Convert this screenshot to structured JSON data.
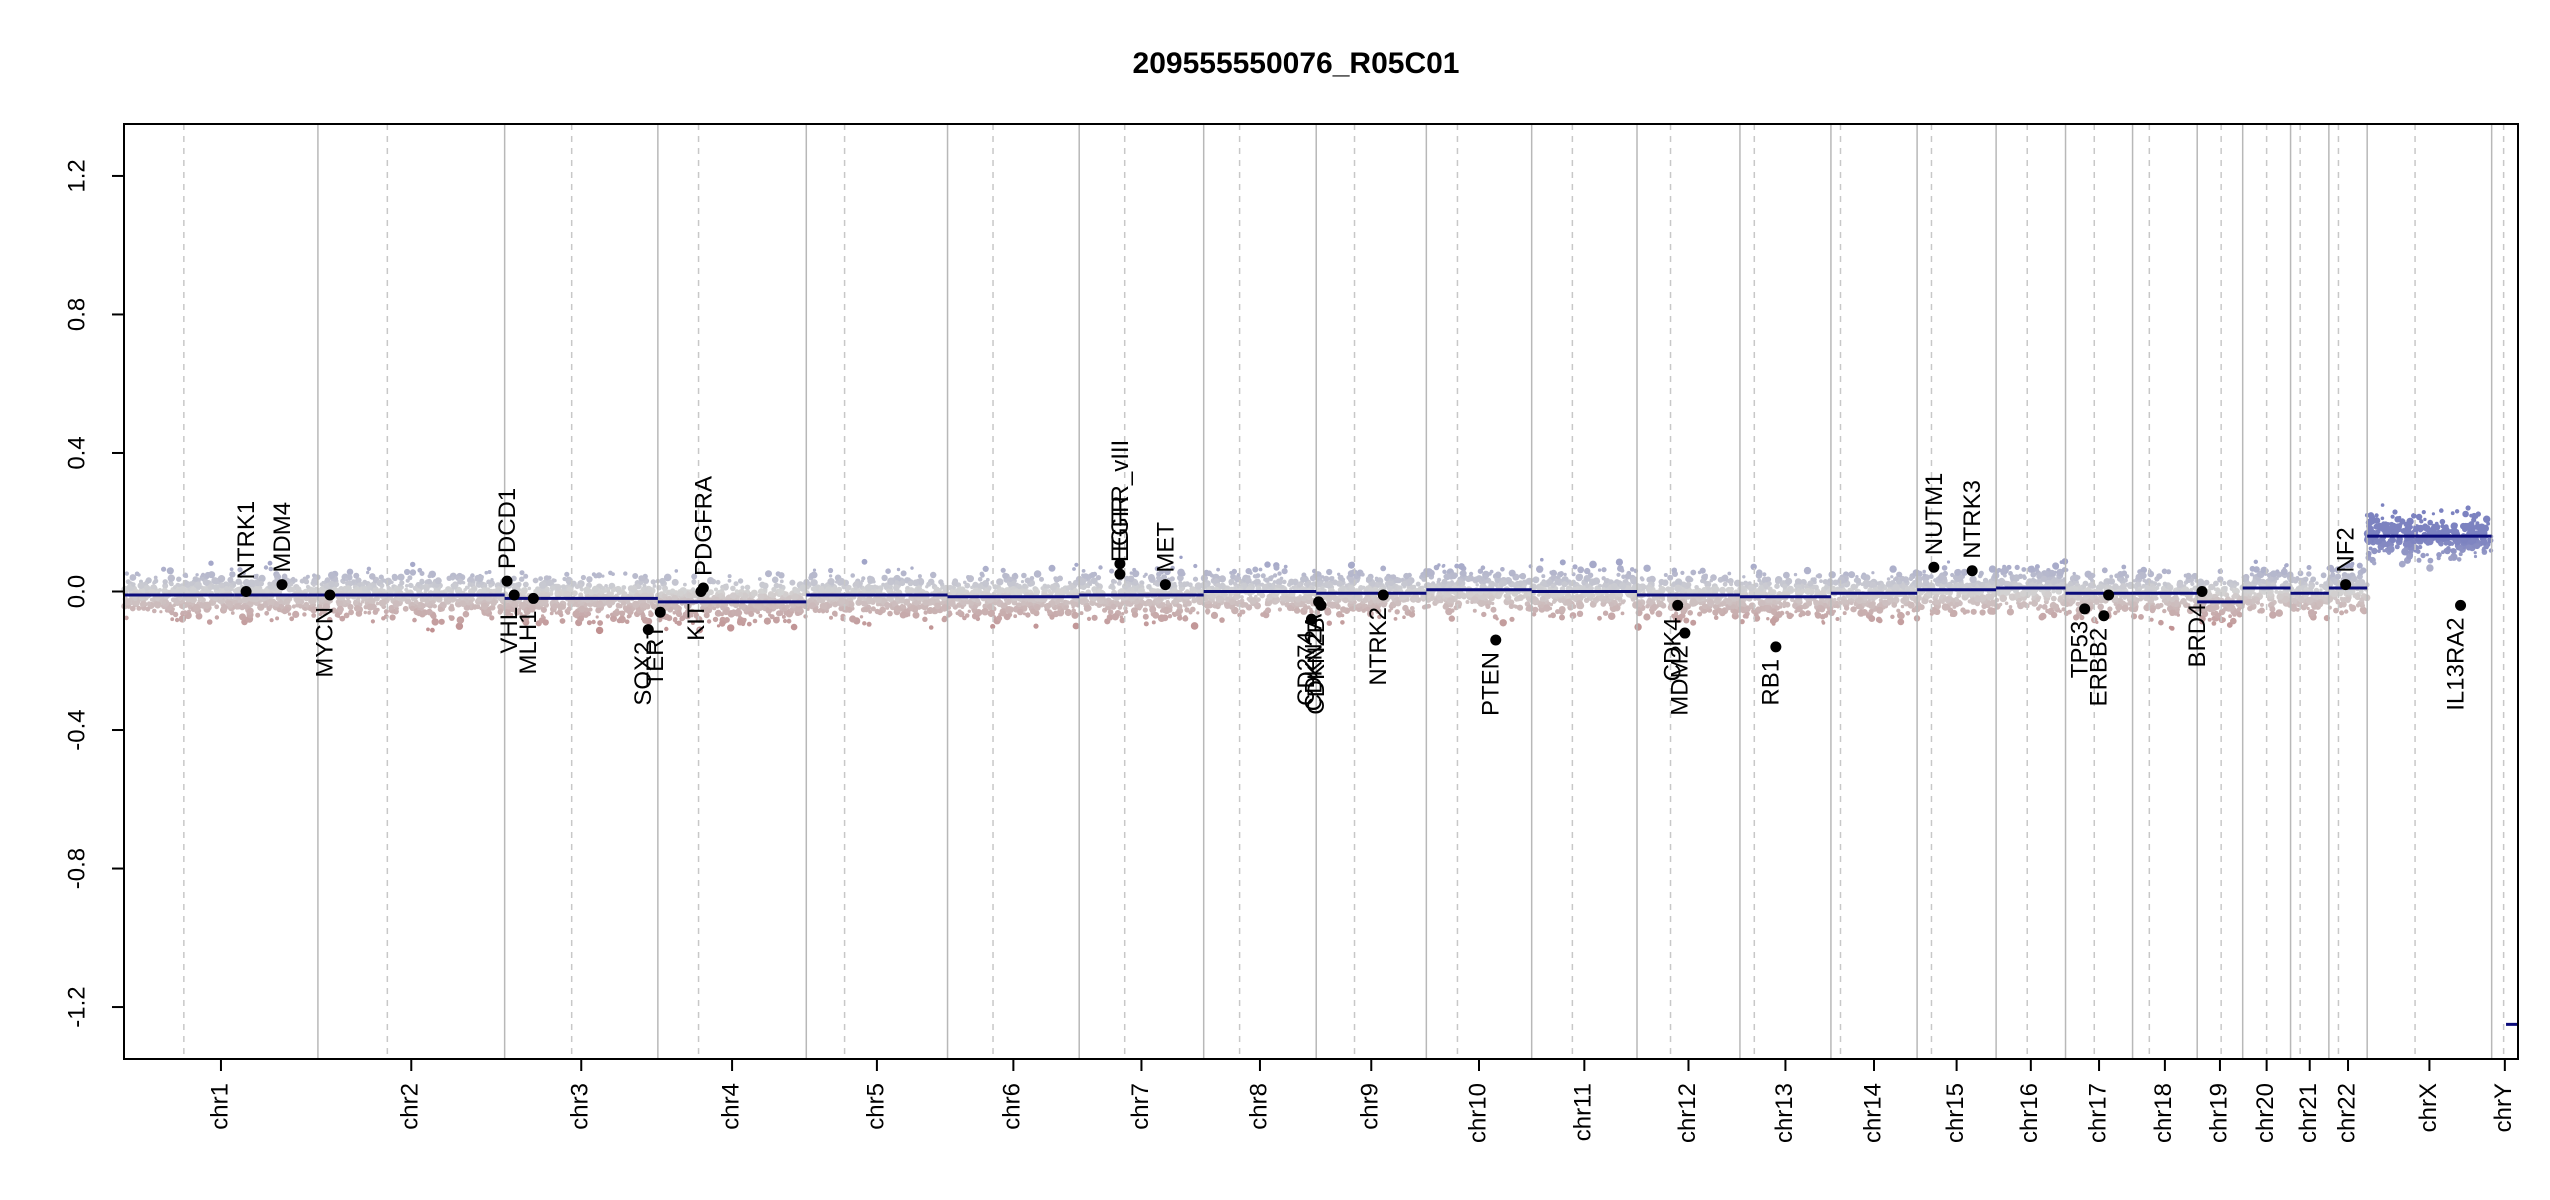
{
  "chart_data": {
    "type": "scatter",
    "title": "209555550076_R05C01",
    "xlabel": "",
    "ylabel": "",
    "ylim": [
      -1.35,
      1.35
    ],
    "y_ticks": [
      1.2,
      0.8,
      0.4,
      0.0,
      -0.4,
      -0.8,
      -1.2
    ],
    "y_tick_labels": [
      "1.2",
      "0.8",
      "0.4",
      "0.0",
      "-0.4",
      "-0.8",
      "-1.2"
    ],
    "grid": false,
    "colors": {
      "gain": "#7c82c0",
      "loss": "#b9797a",
      "neutral": "#d3d3d3",
      "segment": "#0b0b7a",
      "boundary": "#b8b8b8",
      "centromere": "#c8c8c8"
    },
    "chromosomes": [
      {
        "name": "chr1",
        "start": 0.0,
        "end": 8.1,
        "centromere": 2.5
      },
      {
        "name": "chr2",
        "start": 8.1,
        "end": 15.9,
        "centromere": 11.0
      },
      {
        "name": "chr3",
        "start": 15.9,
        "end": 22.3,
        "centromere": 18.7
      },
      {
        "name": "chr4",
        "start": 22.3,
        "end": 28.5,
        "centromere": 24.0
      },
      {
        "name": "chr5",
        "start": 28.5,
        "end": 34.4,
        "centromere": 30.1
      },
      {
        "name": "chr6",
        "start": 34.4,
        "end": 39.9,
        "centromere": 36.3
      },
      {
        "name": "chr7",
        "start": 39.9,
        "end": 45.1,
        "centromere": 41.8
      },
      {
        "name": "chr8",
        "start": 45.1,
        "end": 49.8,
        "centromere": 46.6
      },
      {
        "name": "chr9",
        "start": 49.8,
        "end": 54.4,
        "centromere": 51.4
      },
      {
        "name": "chr10",
        "start": 54.4,
        "end": 58.8,
        "centromere": 55.7
      },
      {
        "name": "chr11",
        "start": 58.8,
        "end": 63.2,
        "centromere": 60.5
      },
      {
        "name": "chr12",
        "start": 63.2,
        "end": 67.5,
        "centromere": 64.6
      },
      {
        "name": "chr13",
        "start": 67.5,
        "end": 71.3,
        "centromere": 68.1
      },
      {
        "name": "chr14",
        "start": 71.3,
        "end": 74.9,
        "centromere": 71.7
      },
      {
        "name": "chr15",
        "start": 74.9,
        "end": 78.2,
        "centromere": 75.5
      },
      {
        "name": "chr16",
        "start": 78.2,
        "end": 81.1,
        "centromere": 79.5
      },
      {
        "name": "chr17",
        "start": 81.1,
        "end": 83.9,
        "centromere": 82.3
      },
      {
        "name": "chr18",
        "start": 83.9,
        "end": 86.6,
        "centromere": 84.6
      },
      {
        "name": "chr19",
        "start": 86.6,
        "end": 88.5,
        "centromere": 87.6
      },
      {
        "name": "chr20",
        "start": 88.5,
        "end": 90.5,
        "centromere": 89.5
      },
      {
        "name": "chr21",
        "start": 90.5,
        "end": 92.1,
        "centromere": 90.9
      },
      {
        "name": "chr22",
        "start": 92.1,
        "end": 93.7,
        "centromere": 92.5
      },
      {
        "name": "chrX",
        "start": 93.7,
        "end": 98.9,
        "centromere": 95.7
      },
      {
        "name": "chrY",
        "start": 98.9,
        "end": 100.0,
        "centromere": 99.4
      }
    ],
    "segments": [
      {
        "chr": "chr1",
        "start": 0.0,
        "end": 4.6,
        "value": -0.01
      },
      {
        "chr": "chr1",
        "start": 4.6,
        "end": 8.1,
        "value": -0.01
      },
      {
        "chr": "chr2",
        "start": 8.1,
        "end": 15.9,
        "value": -0.01
      },
      {
        "chr": "chr3",
        "start": 15.9,
        "end": 17.4,
        "value": -0.02
      },
      {
        "chr": "chr3",
        "start": 17.4,
        "end": 22.3,
        "value": -0.02
      },
      {
        "chr": "chr4",
        "start": 22.3,
        "end": 28.5,
        "value": -0.03
      },
      {
        "chr": "chr5",
        "start": 28.5,
        "end": 34.4,
        "value": -0.01
      },
      {
        "chr": "chr6",
        "start": 34.4,
        "end": 39.9,
        "value": -0.015
      },
      {
        "chr": "chr7",
        "start": 39.9,
        "end": 45.1,
        "value": -0.01
      },
      {
        "chr": "chr8",
        "start": 45.1,
        "end": 49.8,
        "value": 0.0
      },
      {
        "chr": "chr9",
        "start": 49.8,
        "end": 54.4,
        "value": -0.005
      },
      {
        "chr": "chr10",
        "start": 54.4,
        "end": 58.8,
        "value": 0.005
      },
      {
        "chr": "chr11",
        "start": 58.8,
        "end": 63.2,
        "value": 0.0
      },
      {
        "chr": "chr12",
        "start": 63.2,
        "end": 67.5,
        "value": -0.01
      },
      {
        "chr": "chr13",
        "start": 67.5,
        "end": 71.3,
        "value": -0.015
      },
      {
        "chr": "chr14",
        "start": 71.3,
        "end": 74.9,
        "value": -0.005
      },
      {
        "chr": "chr15",
        "start": 74.9,
        "end": 78.2,
        "value": 0.005
      },
      {
        "chr": "chr16",
        "start": 78.2,
        "end": 81.1,
        "value": 0.01
      },
      {
        "chr": "chr17",
        "start": 81.1,
        "end": 83.9,
        "value": -0.005
      },
      {
        "chr": "chr18",
        "start": 83.9,
        "end": 86.6,
        "value": -0.005
      },
      {
        "chr": "chr19",
        "start": 86.6,
        "end": 88.5,
        "value": -0.03
      },
      {
        "chr": "chr20",
        "start": 88.5,
        "end": 90.5,
        "value": 0.01
      },
      {
        "chr": "chr21",
        "start": 90.5,
        "end": 92.1,
        "value": -0.005
      },
      {
        "chr": "chr22",
        "start": 92.1,
        "end": 93.7,
        "value": 0.01
      },
      {
        "chr": "chrX",
        "start": 93.7,
        "end": 98.9,
        "value": 0.16
      },
      {
        "chr": "chrY",
        "start": 99.5,
        "end": 100.0,
        "value": -1.25
      }
    ],
    "genes": [
      {
        "name": "NTRK1",
        "x": 5.1,
        "y": 0.0,
        "label_pos": "above"
      },
      {
        "name": "MDM4",
        "x": 6.6,
        "y": 0.02,
        "label_pos": "above"
      },
      {
        "name": "MYCN",
        "x": 8.6,
        "y": -0.01,
        "label_pos": "below"
      },
      {
        "name": "PDCD1",
        "x": 16.0,
        "y": 0.03,
        "label_pos": "above"
      },
      {
        "name": "VHL",
        "x": 16.3,
        "y": -0.01,
        "label_pos": "below"
      },
      {
        "name": "MLH1",
        "x": 17.1,
        "y": -0.02,
        "label_pos": "below"
      },
      {
        "name": "SOX2",
        "x": 21.9,
        "y": -0.11,
        "label_pos": "below"
      },
      {
        "name": "TERT",
        "x": 22.4,
        "y": -0.06,
        "label_pos": "below"
      },
      {
        "name": "PDGFRA",
        "x": 24.2,
        "y": 0.01,
        "label_pos": "above"
      },
      {
        "name": "KIT",
        "x": 24.1,
        "y": 0.0,
        "label_pos": "below"
      },
      {
        "name": "EGFR",
        "x": 41.6,
        "y": 0.05,
        "label_pos": "above"
      },
      {
        "name": "EGFR_vIII",
        "x": 41.6,
        "y": 0.08,
        "label_pos": "above"
      },
      {
        "name": "MET",
        "x": 43.5,
        "y": 0.02,
        "label_pos": "above"
      },
      {
        "name": "CD274",
        "x": 49.6,
        "y": -0.08,
        "label_pos": "below"
      },
      {
        "name": "CDKN2A",
        "x": 49.9,
        "y": -0.03,
        "label_pos": "below"
      },
      {
        "name": "CDKN2B",
        "x": 50.0,
        "y": -0.04,
        "label_pos": "below"
      },
      {
        "name": "NTRK2",
        "x": 52.6,
        "y": -0.01,
        "label_pos": "below"
      },
      {
        "name": "PTEN",
        "x": 57.3,
        "y": -0.14,
        "label_pos": "below"
      },
      {
        "name": "CDK4",
        "x": 64.9,
        "y": -0.04,
        "label_pos": "below"
      },
      {
        "name": "MDM2",
        "x": 65.2,
        "y": -0.12,
        "label_pos": "below"
      },
      {
        "name": "RB1",
        "x": 69.0,
        "y": -0.16,
        "label_pos": "below"
      },
      {
        "name": "NUTM1",
        "x": 75.6,
        "y": 0.07,
        "label_pos": "above"
      },
      {
        "name": "NTRK3",
        "x": 77.2,
        "y": 0.06,
        "label_pos": "above"
      },
      {
        "name": "TP53",
        "x": 81.9,
        "y": -0.05,
        "label_pos": "below"
      },
      {
        "name": "ERBB2",
        "x": 82.7,
        "y": -0.07,
        "label_pos": "below"
      },
      {
        "name": "",
        "x": 82.9,
        "y": -0.01,
        "label_pos": "none"
      },
      {
        "name": "BRD4",
        "x": 86.8,
        "y": 0.0,
        "label_pos": "below"
      },
      {
        "name": "NF2",
        "x": 92.8,
        "y": 0.02,
        "label_pos": "above"
      },
      {
        "name": "IL13RA2",
        "x": 97.6,
        "y": -0.04,
        "label_pos": "below"
      }
    ]
  }
}
